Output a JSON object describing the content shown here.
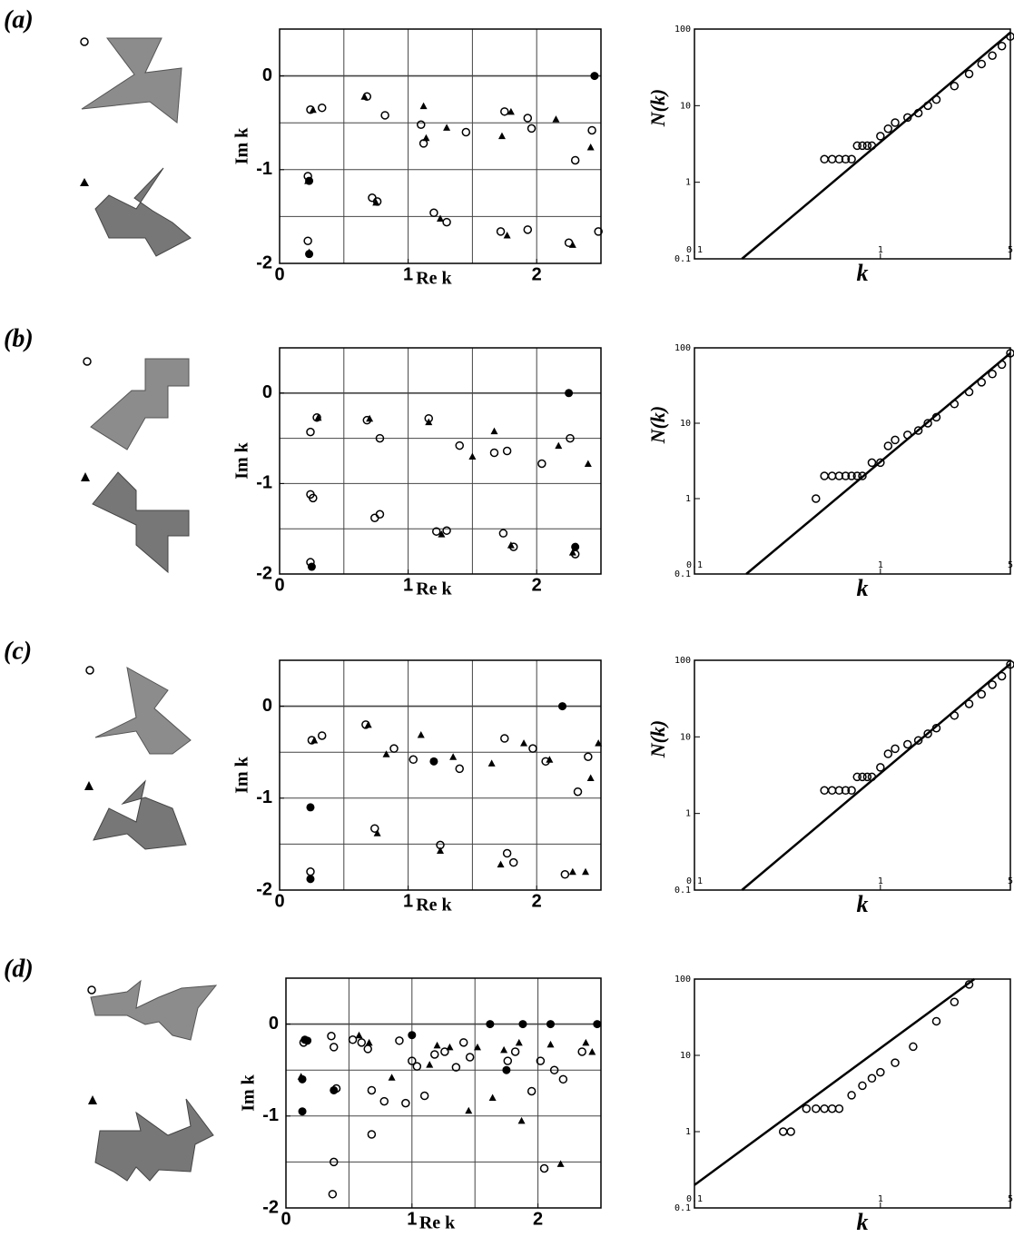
{
  "chart_data": [
    {
      "type": "scatter",
      "panel": "(a)",
      "xlabel": "Re k",
      "ylabel": "Im k",
      "xlim": [
        0,
        2.5
      ],
      "ylim": [
        -2,
        0.5
      ],
      "xticks": [
        0,
        1,
        2
      ],
      "yticks": [
        0,
        -1,
        -2
      ],
      "xgrid": [
        0.5,
        1,
        1.5,
        2
      ],
      "ygrid": [
        0,
        -0.5,
        -1,
        -1.5
      ],
      "series": [
        {
          "marker": "circle",
          "x": [
            0.24,
            0.33,
            0.68,
            0.82,
            1.1,
            1.12,
            1.45,
            1.75,
            1.93,
            1.96,
            2.3,
            2.43,
            0.22,
            0.72,
            0.76,
            1.2,
            1.3,
            1.72,
            1.93,
            2.25,
            2.48,
            0.22
          ],
          "values": [
            -0.36,
            -0.34,
            -0.22,
            -0.42,
            -0.52,
            -0.72,
            -0.6,
            -0.38,
            -0.45,
            -0.56,
            -0.9,
            -0.58,
            -1.07,
            -1.3,
            -1.34,
            -1.46,
            -1.56,
            -1.66,
            -1.64,
            -1.78,
            -1.66,
            -1.76
          ]
        },
        {
          "marker": "triangle",
          "x": [
            0.26,
            0.66,
            1.12,
            1.14,
            1.3,
            1.73,
            1.8,
            2.15,
            2.42,
            0.22,
            0.75,
            1.25,
            1.77,
            2.28,
            0.23
          ],
          "values": [
            -0.36,
            -0.22,
            -0.32,
            -0.66,
            -0.55,
            -0.64,
            -0.38,
            -0.46,
            -0.76,
            -1.12,
            -1.35,
            -1.52,
            -1.7,
            -1.8,
            -1.88
          ]
        },
        {
          "marker": "dot",
          "x": [
            2.45,
            0.23,
            0.23
          ],
          "values": [
            0,
            -1.9,
            -1.12
          ]
        }
      ]
    },
    {
      "type": "loglog",
      "xlabel": "k",
      "ylabel": "N(k)",
      "xlim": [
        0.1,
        5
      ],
      "ylim": [
        0.1,
        100
      ],
      "xticks": [
        0.1,
        1,
        5
      ],
      "yticks": [
        0.1,
        1,
        10,
        100
      ],
      "series": [
        {
          "marker": "circle",
          "x": [
            0.5,
            0.55,
            0.6,
            0.65,
            0.7,
            0.75,
            0.8,
            0.85,
            0.9,
            1.0,
            1.1,
            1.2,
            1.4,
            1.6,
            1.8,
            2,
            2.5,
            3,
            3.5,
            4,
            4.5,
            5
          ],
          "values": [
            2,
            2,
            2,
            2,
            2,
            3,
            3,
            3,
            3,
            4,
            5,
            6,
            7,
            8,
            10,
            12,
            18,
            26,
            35,
            45,
            60,
            80
          ]
        },
        {
          "marker": "line",
          "x": [
            0.18,
            5
          ],
          "values": [
            0.1,
            90
          ]
        }
      ]
    },
    {
      "type": "scatter",
      "panel": "(b)",
      "xlabel": "Re k",
      "ylabel": "Im k",
      "xlim": [
        0,
        2.5
      ],
      "ylim": [
        -2,
        0.5
      ],
      "xticks": [
        0,
        1,
        2
      ],
      "yticks": [
        0,
        -1,
        -2
      ],
      "xgrid": [
        0.5,
        1,
        1.5,
        2
      ],
      "ygrid": [
        0,
        -0.5,
        -1,
        -1.5
      ],
      "series": [
        {
          "marker": "circle",
          "x": [
            0.24,
            0.29,
            0.68,
            0.78,
            1.16,
            1.4,
            1.67,
            1.77,
            2.04,
            2.26,
            0.24,
            0.26,
            0.74,
            0.78,
            1.22,
            1.3,
            1.74,
            1.82,
            2.3,
            0.24
          ],
          "values": [
            -0.43,
            -0.27,
            -0.3,
            -0.5,
            -0.28,
            -0.58,
            -0.66,
            -0.64,
            -0.78,
            -0.5,
            -1.12,
            -1.16,
            -1.38,
            -1.34,
            -1.53,
            -1.52,
            -1.55,
            -1.7,
            -1.78,
            -1.87
          ]
        },
        {
          "marker": "triangle",
          "x": [
            0.3,
            0.7,
            1.16,
            1.5,
            1.67,
            2.17,
            2.4,
            1.26,
            1.8,
            2.28
          ],
          "values": [
            -0.27,
            -0.28,
            -0.32,
            -0.7,
            -0.42,
            -0.58,
            -0.78,
            -1.56,
            -1.68,
            -1.76
          ]
        },
        {
          "marker": "dot",
          "x": [
            2.25,
            0.25,
            2.3
          ],
          "values": [
            0,
            -1.92,
            -1.7
          ]
        }
      ]
    },
    {
      "type": "loglog",
      "xlabel": "k",
      "ylabel": "N(k)",
      "xlim": [
        0.1,
        5
      ],
      "ylim": [
        0.1,
        100
      ],
      "xticks": [
        0.1,
        1,
        5
      ],
      "yticks": [
        0.1,
        1,
        10,
        100
      ],
      "series": [
        {
          "marker": "circle",
          "x": [
            0.45,
            0.5,
            0.55,
            0.6,
            0.65,
            0.7,
            0.75,
            0.8,
            0.9,
            1.0,
            1.1,
            1.2,
            1.4,
            1.6,
            1.8,
            2,
            2.5,
            3,
            3.5,
            4,
            4.5,
            5
          ],
          "values": [
            1,
            2,
            2,
            2,
            2,
            2,
            2,
            2,
            3,
            3,
            5,
            6,
            7,
            8,
            10,
            12,
            18,
            26,
            35,
            45,
            60,
            85
          ]
        },
        {
          "marker": "line",
          "x": [
            0.19,
            5
          ],
          "values": [
            0.1,
            85
          ]
        }
      ]
    },
    {
      "type": "scatter",
      "panel": "(c)",
      "xlabel": "Re k",
      "ylabel": "Im k",
      "xlim": [
        0,
        2.5
      ],
      "ylim": [
        -2,
        0.5
      ],
      "xticks": [
        0,
        1,
        2
      ],
      "yticks": [
        0,
        -1,
        -2
      ],
      "xgrid": [
        0.5,
        1,
        1.5,
        2
      ],
      "ygrid": [
        0,
        -0.5,
        -1,
        -1.5
      ],
      "series": [
        {
          "marker": "circle",
          "x": [
            0.25,
            0.33,
            0.67,
            0.89,
            1.04,
            1.4,
            1.75,
            1.97,
            2.07,
            2.32,
            2.4,
            0.74,
            1.25,
            1.77,
            1.82,
            2.22,
            0.24
          ],
          "values": [
            -0.37,
            -0.32,
            -0.2,
            -0.46,
            -0.58,
            -0.68,
            -0.35,
            -0.46,
            -0.6,
            -0.93,
            -0.55,
            -1.33,
            -1.51,
            -1.6,
            -1.7,
            -1.83,
            -1.8
          ]
        },
        {
          "marker": "triangle",
          "x": [
            0.27,
            0.69,
            0.83,
            1.1,
            1.35,
            1.65,
            1.9,
            2.1,
            2.42,
            2.48,
            0.76,
            1.25,
            1.72,
            2.28,
            2.38
          ],
          "values": [
            -0.37,
            -0.2,
            -0.52,
            -0.31,
            -0.55,
            -0.62,
            -0.4,
            -0.58,
            -0.78,
            -0.4,
            -1.38,
            -1.57,
            -1.72,
            -1.8,
            -1.8
          ]
        },
        {
          "marker": "dot",
          "x": [
            2.2,
            0.24,
            1.2,
            0.24
          ],
          "values": [
            0,
            -1.1,
            -0.6,
            -1.88
          ]
        }
      ]
    },
    {
      "type": "loglog",
      "xlabel": "k",
      "ylabel": "N(k)",
      "xlim": [
        0.1,
        5
      ],
      "ylim": [
        0.1,
        100
      ],
      "xticks": [
        0.1,
        1,
        5
      ],
      "yticks": [
        0.1,
        1,
        10,
        100
      ],
      "series": [
        {
          "marker": "circle",
          "x": [
            0.5,
            0.55,
            0.6,
            0.65,
            0.7,
            0.75,
            0.8,
            0.85,
            0.9,
            1.0,
            1.1,
            1.2,
            1.4,
            1.6,
            1.8,
            2,
            2.5,
            3,
            3.5,
            4,
            4.5,
            5
          ],
          "values": [
            2,
            2,
            2,
            2,
            2,
            3,
            3,
            3,
            3,
            4,
            6,
            7,
            8,
            9,
            11,
            13,
            19,
            27,
            36,
            48,
            62,
            88
          ]
        },
        {
          "marker": "line",
          "x": [
            0.18,
            5
          ],
          "values": [
            0.1,
            90
          ]
        }
      ]
    },
    {
      "type": "scatter",
      "panel": "(d)",
      "xlabel": "Re k",
      "ylabel": "Im k",
      "xlim": [
        0,
        2.5
      ],
      "ylim": [
        -2,
        0.5
      ],
      "xticks": [
        0,
        1,
        2
      ],
      "yticks": [
        0,
        -1,
        -2
      ],
      "xgrid": [
        0.5,
        1,
        1.5,
        2
      ],
      "ygrid": [
        0,
        -0.5,
        -1,
        -1.5
      ],
      "series": [
        {
          "marker": "circle",
          "x": [
            0.14,
            0.36,
            0.38,
            0.53,
            0.6,
            0.65,
            0.68,
            0.78,
            0.9,
            0.95,
            1.0,
            1.04,
            1.1,
            1.18,
            1.26,
            1.35,
            1.41,
            1.46,
            1.76,
            1.82,
            1.95,
            2.02,
            2.05,
            2.13,
            2.2,
            2.35,
            0.38,
            0.37,
            0.68,
            0.4
          ],
          "values": [
            -0.2,
            -0.13,
            -0.25,
            -0.17,
            -0.2,
            -0.27,
            -0.72,
            -0.84,
            -0.18,
            -0.86,
            -0.4,
            -0.46,
            -0.78,
            -0.33,
            -0.3,
            -0.47,
            -0.2,
            -0.36,
            -0.4,
            -0.3,
            -0.73,
            -0.4,
            -1.57,
            -0.5,
            -0.6,
            -0.3,
            -1.5,
            -1.85,
            -1.2,
            -0.7
          ]
        },
        {
          "marker": "triangle",
          "x": [
            0.12,
            0.58,
            0.66,
            0.84,
            1.14,
            1.2,
            1.3,
            1.45,
            1.52,
            1.64,
            1.73,
            1.87,
            2.1,
            2.18,
            2.43,
            2.38,
            1.85
          ],
          "values": [
            -0.57,
            -0.12,
            -0.2,
            -0.58,
            -0.44,
            -0.23,
            -0.25,
            -0.94,
            -0.25,
            -0.8,
            -0.28,
            -1.05,
            -0.22,
            -1.52,
            -0.3,
            -0.2,
            -0.2
          ]
        },
        {
          "marker": "dot",
          "x": [
            0.13,
            0.15,
            0.13,
            0.38,
            1.0,
            1.62,
            1.75,
            1.88,
            2.1,
            2.47,
            0.17
          ],
          "values": [
            -0.95,
            -0.17,
            -0.6,
            -0.72,
            -0.12,
            0,
            -0.5,
            0,
            0,
            0,
            -0.18
          ]
        }
      ]
    },
    {
      "type": "loglog",
      "xlabel": "k",
      "xlim": [
        0.1,
        5
      ],
      "ylim": [
        0.1,
        100
      ],
      "xticks": [
        0.1,
        1,
        5
      ],
      "yticks": [
        0.1,
        1,
        10,
        100
      ],
      "series": [
        {
          "marker": "circle",
          "x": [
            0.3,
            0.33,
            0.4,
            0.45,
            0.5,
            0.55,
            0.6,
            0.7,
            0.8,
            0.9,
            1,
            1.2,
            1.5,
            2,
            2.5,
            3
          ],
          "values": [
            1,
            1,
            2,
            2,
            2,
            2,
            2,
            3,
            4,
            5,
            6,
            8,
            13,
            28,
            50,
            85
          ]
        },
        {
          "marker": "line",
          "x": [
            0.1,
            3.2
          ],
          "values": [
            0.2,
            100
          ]
        }
      ]
    }
  ]
}
